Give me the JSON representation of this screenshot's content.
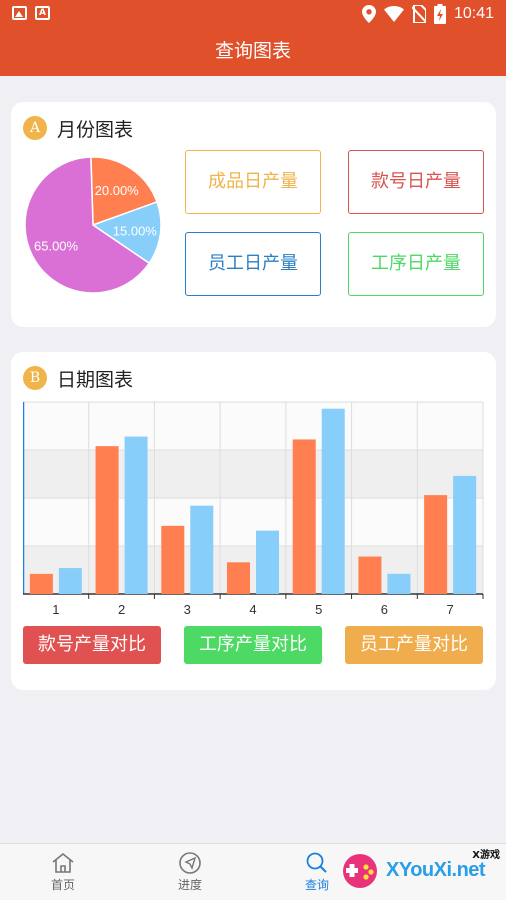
{
  "status_bar": {
    "time": "10:41",
    "icons": [
      "image-icon",
      "text-a-icon",
      "location-icon",
      "wifi-icon",
      "no-sim-icon",
      "battery-charging-icon"
    ]
  },
  "app_bar": {
    "title": "查询图表"
  },
  "month_card": {
    "badge": "A",
    "title": "月份图表",
    "buttons": [
      {
        "label": "成品日产量",
        "color": "#f0b44a"
      },
      {
        "label": "款号日产量",
        "color": "#d9534f"
      },
      {
        "label": "员工日产量",
        "color": "#2a80c7"
      },
      {
        "label": "工序日产量",
        "color": "#4cd964"
      }
    ]
  },
  "date_card": {
    "badge": "B",
    "title": "日期图表",
    "buttons": [
      {
        "label": "款号产量对比",
        "color": "#e05252"
      },
      {
        "label": "工序产量对比",
        "color": "#4cd964"
      },
      {
        "label": "员工产量对比",
        "color": "#f0ad4e"
      }
    ]
  },
  "chart_data": [
    {
      "type": "pie",
      "values": [
        65,
        20,
        15
      ],
      "labels": [
        "65.00%",
        "20.00%",
        "15.00%"
      ],
      "colors": [
        "#da70d6",
        "#ff7f50",
        "#87cefa"
      ]
    },
    {
      "type": "bar",
      "categories": [
        "1",
        "2",
        "3",
        "4",
        "5",
        "6",
        "7"
      ],
      "series": [
        {
          "values": [
            2.1,
            15.4,
            7.1,
            3.3,
            16.1,
            3.9,
            10.3
          ],
          "color": "#ff7f50"
        },
        {
          "values": [
            2.7,
            16.4,
            9.2,
            6.6,
            19.3,
            2.1,
            12.3
          ],
          "color": "#87cefa"
        }
      ],
      "ylim": [
        0,
        20
      ],
      "grid": true
    }
  ],
  "bottom_nav": [
    {
      "label": "首页",
      "icon": "home-icon",
      "active": false
    },
    {
      "label": "进度",
      "icon": "navigation-arrow-icon",
      "active": false
    },
    {
      "label": "查询",
      "icon": "search-icon",
      "active": true
    }
  ],
  "watermark": {
    "text": "XYouXi.net",
    "small": "X游戏"
  }
}
